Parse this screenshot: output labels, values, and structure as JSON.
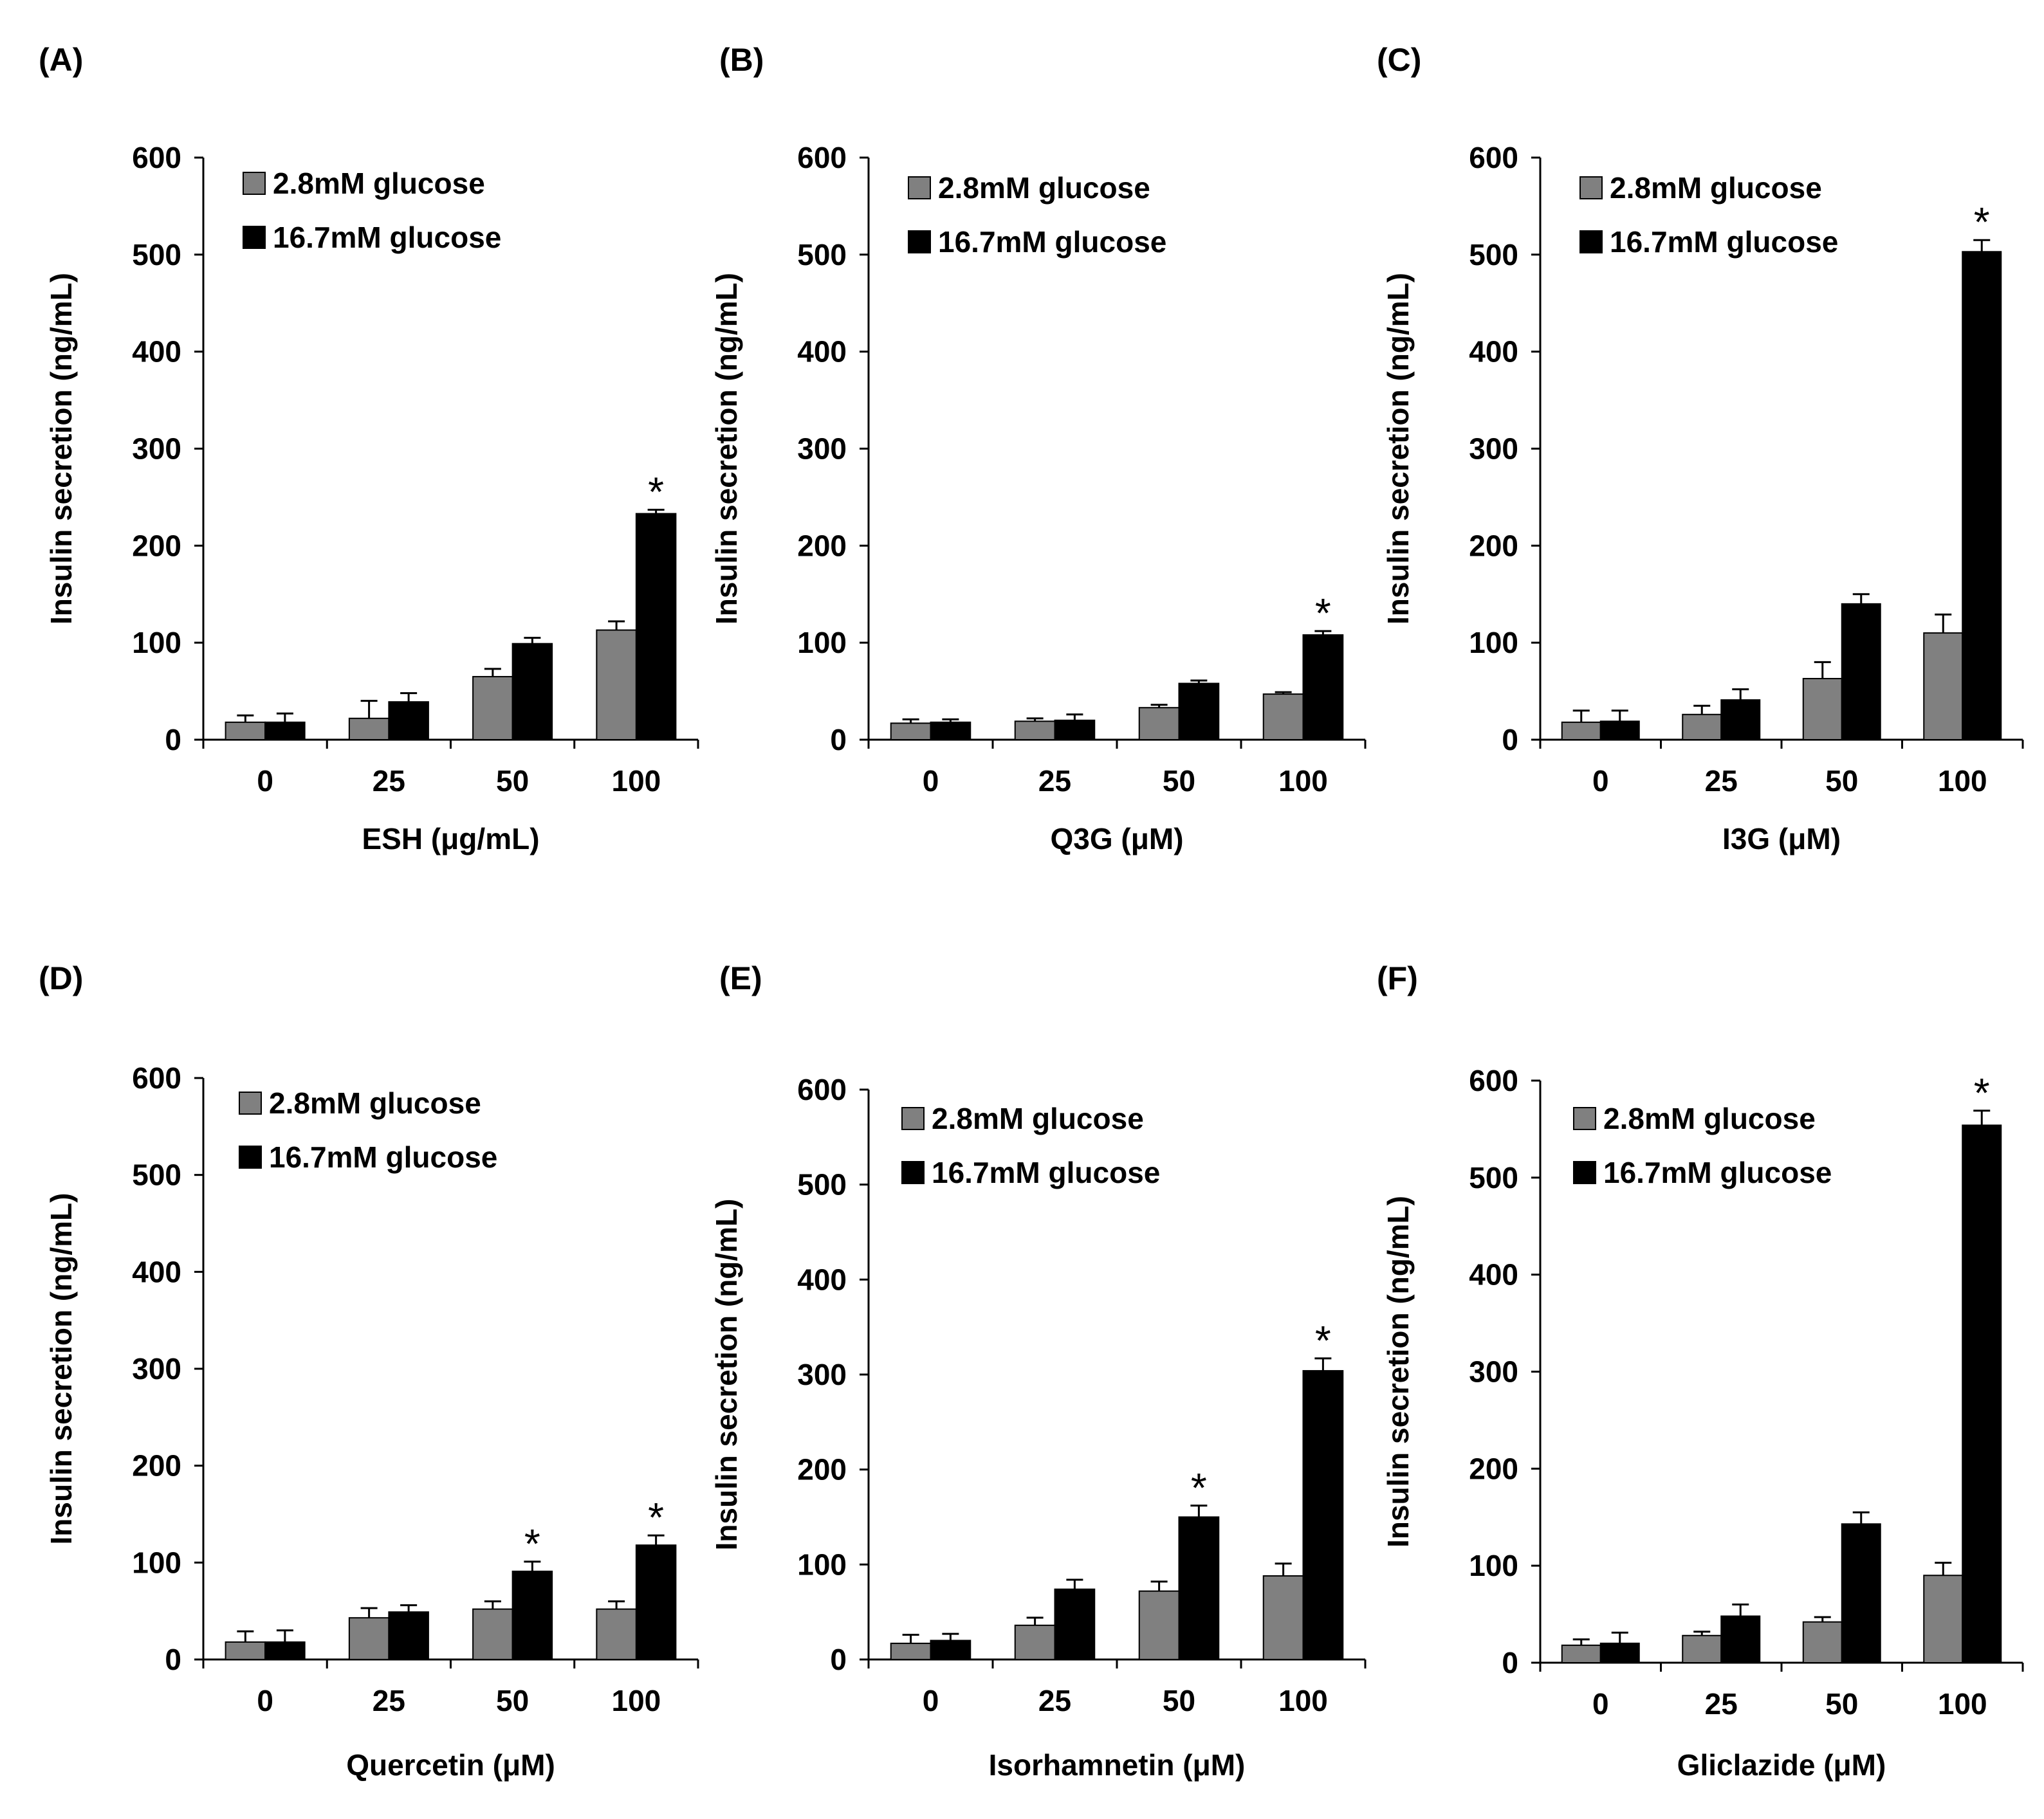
{
  "figure": {
    "panels": [
      {
        "label": "(A)",
        "xlabel": "ESH (μg/mL)"
      },
      {
        "label": "(B)",
        "xlabel": "Q3G (μM)"
      },
      {
        "label": "(C)",
        "xlabel": "I3G (μM)"
      },
      {
        "label": "(D)",
        "xlabel": "Quercetin (μM)"
      },
      {
        "label": "(E)",
        "xlabel": "Isorhamnetin (μM)"
      },
      {
        "label": "(F)",
        "xlabel": "Gliclazide (μM)"
      }
    ]
  },
  "colors": {
    "low_glucose": "#808080",
    "high_glucose": "#000000"
  },
  "chart_data": [
    {
      "panel": "(A)",
      "type": "bar",
      "categories": [
        "0",
        "25",
        "50",
        "100"
      ],
      "series": [
        {
          "name": "2.8mM glucose",
          "values": [
            18,
            22,
            65,
            113
          ],
          "errors": [
            7,
            18,
            8,
            9
          ]
        },
        {
          "name": "16.7mM glucose",
          "values": [
            18,
            39,
            99,
            233
          ],
          "errors": [
            9,
            9,
            6,
            4
          ]
        }
      ],
      "significant": [
        [
          false,
          false,
          false,
          false
        ],
        [
          false,
          false,
          false,
          true
        ]
      ],
      "significance_marker": "*",
      "ylabel": "Insulin secretion (ng/mL)",
      "xlabel": "ESH (μg/mL)",
      "ylim": [
        0,
        600
      ],
      "yticks": [
        0,
        100,
        200,
        300,
        400,
        500,
        600
      ],
      "legend": "top-left"
    },
    {
      "panel": "(B)",
      "type": "bar",
      "categories": [
        "0",
        "25",
        "50",
        "100"
      ],
      "series": [
        {
          "name": "2.8mM glucose",
          "values": [
            17,
            19,
            33,
            47
          ],
          "errors": [
            4,
            3,
            3,
            2
          ]
        },
        {
          "name": "16.7mM glucose",
          "values": [
            18,
            20,
            58,
            108
          ],
          "errors": [
            3,
            6,
            3,
            4
          ]
        }
      ],
      "significant": [
        [
          false,
          false,
          false,
          false
        ],
        [
          false,
          false,
          false,
          true
        ]
      ],
      "significance_marker": "*",
      "ylabel": "Insulin secretion (ng/mL)",
      "xlabel": "Q3G (μM)",
      "ylim": [
        0,
        600
      ],
      "yticks": [
        0,
        100,
        200,
        300,
        400,
        500,
        600
      ],
      "legend": "top-left"
    },
    {
      "panel": "(C)",
      "type": "bar",
      "categories": [
        "0",
        "25",
        "50",
        "100"
      ],
      "series": [
        {
          "name": "2.8mM glucose",
          "values": [
            18,
            26,
            63,
            110
          ],
          "errors": [
            12,
            9,
            17,
            19
          ]
        },
        {
          "name": "16.7mM glucose",
          "values": [
            19,
            41,
            140,
            503
          ],
          "errors": [
            11,
            11,
            10,
            12
          ]
        }
      ],
      "significant": [
        [
          false,
          false,
          false,
          false
        ],
        [
          false,
          false,
          false,
          true
        ]
      ],
      "significance_marker": "*",
      "ylabel": "Insulin secretion (ng/mL)",
      "xlabel": "I3G (μM)",
      "ylim": [
        0,
        600
      ],
      "yticks": [
        0,
        100,
        200,
        300,
        400,
        500,
        600
      ],
      "legend": "top-left"
    },
    {
      "panel": "(D)",
      "type": "bar",
      "categories": [
        "0",
        "25",
        "50",
        "100"
      ],
      "series": [
        {
          "name": "2.8mM glucose",
          "values": [
            18,
            43,
            52,
            52
          ],
          "errors": [
            11,
            10,
            8,
            8
          ]
        },
        {
          "name": "16.7mM glucose",
          "values": [
            18,
            49,
            91,
            118
          ],
          "errors": [
            12,
            7,
            10,
            10
          ]
        }
      ],
      "significant": [
        [
          false,
          false,
          false,
          false
        ],
        [
          false,
          false,
          true,
          true
        ]
      ],
      "significance_marker": "*",
      "ylabel": "Insulin secretion (ng/mL)",
      "xlabel": "Quercetin (μM)",
      "ylim": [
        0,
        600
      ],
      "yticks": [
        0,
        100,
        200,
        300,
        400,
        500,
        600
      ],
      "legend": "top-left"
    },
    {
      "panel": "(E)",
      "type": "bar",
      "categories": [
        "0",
        "25",
        "50",
        "100"
      ],
      "series": [
        {
          "name": "2.8mM glucose",
          "values": [
            17,
            36,
            72,
            88
          ],
          "errors": [
            9,
            8,
            10,
            13
          ]
        },
        {
          "name": "16.7mM glucose",
          "values": [
            20,
            74,
            150,
            304
          ],
          "errors": [
            7,
            10,
            12,
            13
          ]
        }
      ],
      "significant": [
        [
          false,
          false,
          false,
          false
        ],
        [
          false,
          false,
          true,
          true
        ]
      ],
      "significance_marker": "*",
      "ylabel": "Insulin secretion (ng/mL)",
      "xlabel": "Isorhamnetin (μM)",
      "ylim": [
        0,
        600
      ],
      "yticks": [
        0,
        100,
        200,
        300,
        400,
        500,
        600
      ],
      "legend": "top-left"
    },
    {
      "panel": "(F)",
      "type": "bar",
      "categories": [
        "0",
        "25",
        "50",
        "100"
      ],
      "series": [
        {
          "name": "2.8mM glucose",
          "values": [
            18,
            28,
            42,
            90
          ],
          "errors": [
            6,
            4,
            5,
            13
          ]
        },
        {
          "name": "16.7mM glucose",
          "values": [
            20,
            48,
            143,
            554
          ],
          "errors": [
            11,
            12,
            12,
            15
          ]
        }
      ],
      "significant": [
        [
          false,
          false,
          false,
          false
        ],
        [
          false,
          false,
          false,
          true
        ]
      ],
      "significance_marker": "*",
      "ylabel": "Insulin secretion (ng/mL)",
      "xlabel": "Gliclazide (μM)",
      "ylim": [
        0,
        600
      ],
      "yticks": [
        0,
        100,
        200,
        300,
        400,
        500,
        600
      ],
      "legend": "top-left"
    }
  ]
}
